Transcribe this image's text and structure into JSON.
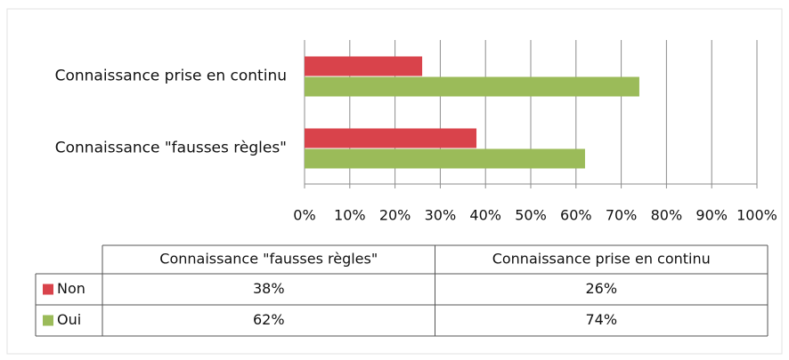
{
  "chart_data": {
    "type": "bar",
    "orientation": "horizontal",
    "categories": [
      "Connaissance \"fausses règles\"",
      "Connaissance prise en continu"
    ],
    "series": [
      {
        "name": "Non",
        "color": "#d9434b",
        "values": [
          38,
          26
        ],
        "value_labels": [
          "38%",
          "26%"
        ]
      },
      {
        "name": "Oui",
        "color": "#9bbb59",
        "values": [
          62,
          74
        ],
        "value_labels": [
          "62%",
          "74%"
        ]
      }
    ],
    "xlim": [
      0,
      100
    ],
    "xticks": [
      {
        "value": 0,
        "label": "0%"
      },
      {
        "value": 10,
        "label": "10%"
      },
      {
        "value": 20,
        "label": "20%"
      },
      {
        "value": 30,
        "label": "30%"
      },
      {
        "value": 40,
        "label": "40%"
      },
      {
        "value": 50,
        "label": "50%"
      },
      {
        "value": 60,
        "label": "60%"
      },
      {
        "value": 70,
        "label": "70%"
      },
      {
        "value": 80,
        "label": "80%"
      },
      {
        "value": 90,
        "label": "90%"
      },
      {
        "value": 100,
        "label": "100%"
      }
    ],
    "grid": true,
    "data_table": true
  }
}
